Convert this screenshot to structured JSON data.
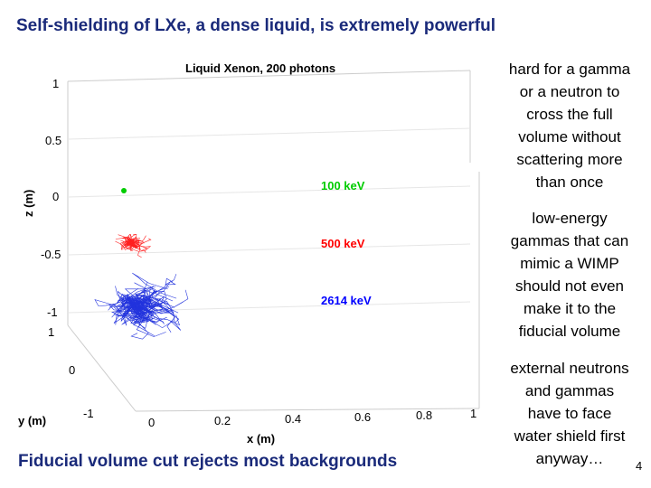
{
  "slide": {
    "title": "Self-shielding of LXe, a dense liquid, is extremely powerful",
    "bottom_title": "Fiducial volume cut rejects most backgrounds",
    "page_number": "4",
    "notes": [
      [
        "hard for a gamma",
        "or a neutron to",
        "cross the full",
        "volume without",
        "scattering more",
        "than once"
      ],
      [
        "low-energy",
        "gammas that can",
        "mimic a WIMP",
        "should not even",
        "make it to the",
        "fiducial volume"
      ],
      [
        "external neutrons",
        "and gammas",
        "have to face",
        "water shield first",
        "anyway…"
      ]
    ]
  },
  "figure": {
    "title": "Liquid Xenon, 200 photons",
    "zlabel": "z (m)",
    "ylabel": "y (m)",
    "xlabel": "x (m)",
    "z_ticks": [
      "1",
      "0.5",
      "0",
      "-0.5",
      "-1"
    ],
    "y_ticks": [
      "1",
      "0",
      "-1"
    ],
    "x_ticks": [
      "0",
      "0.2",
      "0.4",
      "0.6",
      "0.8",
      "1"
    ],
    "energies": [
      {
        "label": "100 keV",
        "color": "#00cc00"
      },
      {
        "label": "500 keV",
        "color": "#ff0000"
      },
      {
        "label": "2614 keV",
        "color": "#0000ff"
      }
    ]
  }
}
